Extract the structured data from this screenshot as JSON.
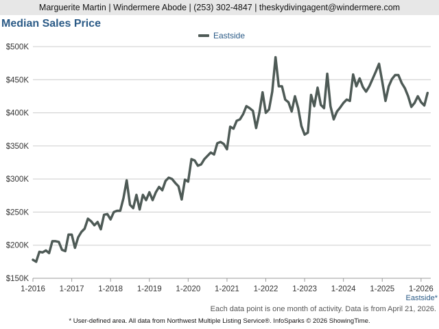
{
  "header": {
    "text": "Marguerite Martin | Windermere Abode | (253) 302-4847 | theskydivingagent@windermere.com"
  },
  "colors": {
    "line": "#4e5a56",
    "title": "#2a5a86",
    "grid": "#cccccc",
    "header_bg": "#e7e7e7"
  },
  "chart_data": {
    "type": "line",
    "title": "Median Sales Price",
    "legend": [
      "Eastside"
    ],
    "legend_position": "top-center",
    "region_label": "Eastside*",
    "note": "Each data point is one month of activity. Data is from April 21, 2026.",
    "footer": "* User-defined area. All data from Northwest Multiple Listing Service®. InfoSparks © 2026 ShowingTime.",
    "ylim": [
      150000,
      500000
    ],
    "yticks": [
      150000,
      200000,
      250000,
      300000,
      350000,
      400000,
      450000,
      500000
    ],
    "ytick_labels": [
      "$150K",
      "$200K",
      "$250K",
      "$300K",
      "$350K",
      "$400K",
      "$450K",
      "$500K"
    ],
    "xlim": [
      2016.0,
      2026.25
    ],
    "xticks": [
      2016,
      2017,
      2018,
      2019,
      2020,
      2021,
      2022,
      2023,
      2024,
      2025,
      2026
    ],
    "xtick_labels": [
      "1-2016",
      "1-2017",
      "1-2018",
      "1-2019",
      "1-2020",
      "1-2021",
      "1-2022",
      "1-2023",
      "1-2024",
      "1-2025",
      "1-2026"
    ],
    "series": [
      {
        "name": "Eastside",
        "start": "1-2016",
        "values": [
          178000,
          175000,
          190000,
          189000,
          192000,
          188000,
          206000,
          206000,
          205000,
          193000,
          191000,
          216000,
          216000,
          196000,
          212000,
          220000,
          225000,
          240000,
          236000,
          230000,
          235000,
          224000,
          246000,
          247000,
          239000,
          250000,
          252000,
          252000,
          271000,
          298000,
          261000,
          256000,
          276000,
          254000,
          276000,
          268000,
          280000,
          268000,
          280000,
          288000,
          283000,
          297000,
          302000,
          300000,
          294000,
          289000,
          269000,
          299000,
          296000,
          330000,
          328000,
          320000,
          322000,
          330000,
          335000,
          340000,
          337000,
          354000,
          356000,
          353000,
          345000,
          379000,
          376000,
          388000,
          390000,
          398000,
          410000,
          407000,
          403000,
          377000,
          400000,
          431000,
          400000,
          405000,
          432000,
          484000,
          440000,
          440000,
          420000,
          416000,
          402000,
          425000,
          407000,
          380000,
          367000,
          370000,
          427000,
          410000,
          438000,
          412000,
          407000,
          459000,
          410000,
          390000,
          402000,
          408000,
          415000,
          420000,
          418000,
          458000,
          440000,
          452000,
          439000,
          432000,
          440000,
          451000,
          462000,
          474000,
          447000,
          418000,
          440000,
          451000,
          457000,
          457000,
          445000,
          437000,
          425000,
          409000,
          415000,
          425000,
          416000,
          411000,
          430000
        ]
      }
    ]
  }
}
